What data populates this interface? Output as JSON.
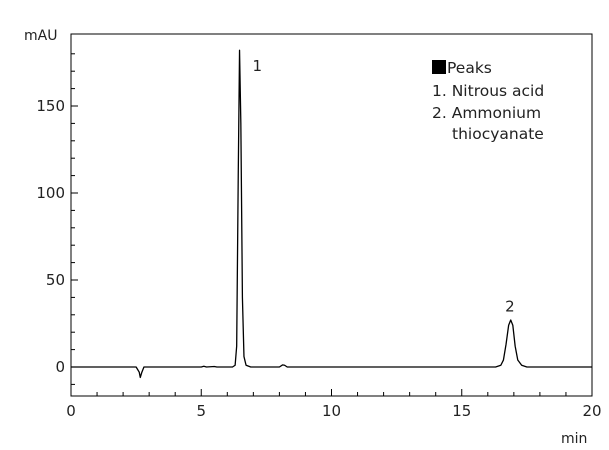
{
  "chart_data": {
    "type": "line",
    "title": "",
    "ylabel": "mAU",
    "xlabel": "min",
    "xlim": [
      0,
      20
    ],
    "ylim": [
      -15,
      182
    ],
    "x_ticks": [
      0,
      5,
      10,
      15,
      20
    ],
    "y_ticks": [
      0,
      50,
      100,
      150
    ],
    "grid": false,
    "line_color": "#000000",
    "legend": {
      "position": "top-right",
      "title": "Peaks",
      "items": [
        "1. Nitrous acid",
        "2. Ammonium",
        "thiocyanate"
      ]
    },
    "peak_labels": [
      {
        "label": "1",
        "x": 7.15,
        "y": 170
      },
      {
        "label": "2",
        "x": 16.85,
        "y": 32
      }
    ],
    "series": [
      {
        "x": [
          0,
          2.5,
          2.62,
          2.66,
          2.72,
          2.8,
          3.0,
          5.0,
          5.1,
          5.2,
          5.5,
          5.6,
          6.2,
          6.3,
          6.36,
          6.42,
          6.47,
          6.52,
          6.58,
          6.64,
          6.72,
          6.9,
          8.0,
          8.12,
          8.2,
          8.3,
          8.5,
          16.3,
          16.5,
          16.6,
          16.7,
          16.8,
          16.88,
          16.96,
          17.05,
          17.15,
          17.3,
          17.5,
          20
        ],
        "y": [
          0,
          0,
          -3,
          -6,
          -3,
          0,
          0,
          0,
          0.4,
          0,
          0.3,
          0,
          0,
          1,
          12,
          110,
          182,
          140,
          40,
          6,
          1,
          0,
          0,
          1.2,
          1,
          0,
          0,
          0,
          1,
          4,
          13,
          24,
          27,
          24,
          12,
          4,
          1,
          0,
          0
        ]
      }
    ]
  }
}
